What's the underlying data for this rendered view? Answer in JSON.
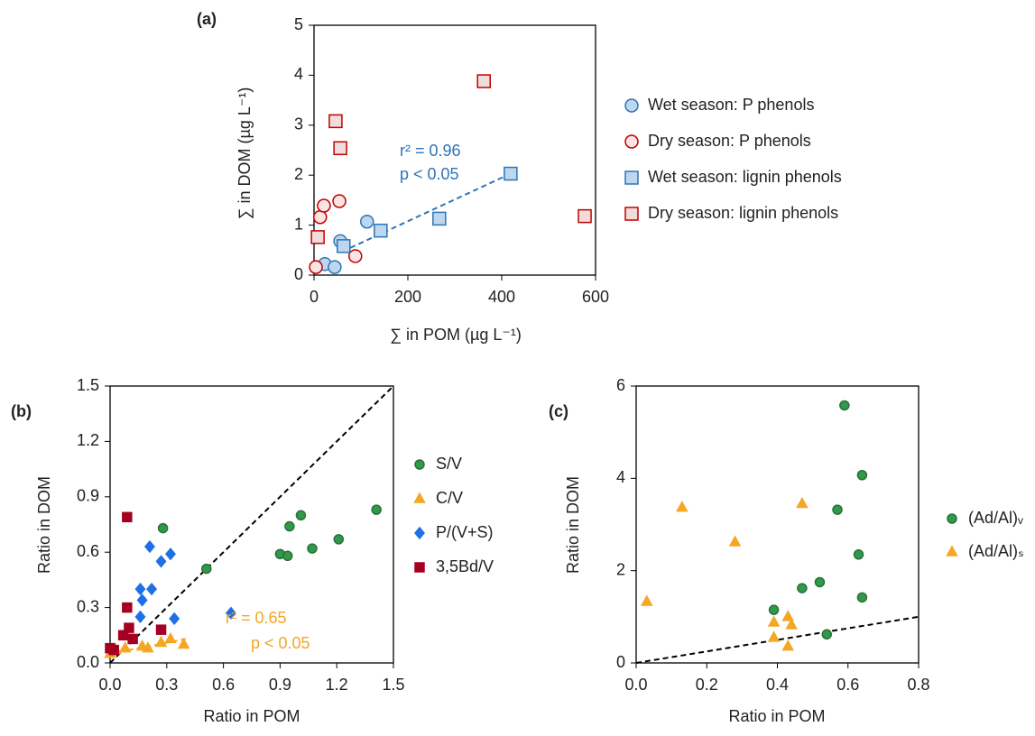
{
  "chart_data": [
    {
      "type": "scatter",
      "panel_label": "(a)",
      "x_label": "∑ in POM (µg L⁻¹)",
      "y_label": "∑ in DOM (µg L⁻¹)",
      "xlim": [
        0,
        600
      ],
      "ylim": [
        0,
        5
      ],
      "xticks": [
        0,
        200,
        400,
        600
      ],
      "yticks": [
        0,
        1,
        2,
        3,
        4,
        5
      ],
      "series": [
        {
          "name": "Wet season: P phenols",
          "marker": "circle",
          "color": "#2e75b6",
          "fill": "#bdd7ee",
          "x": [
            23,
            44,
            56,
            113
          ],
          "values": [
            0.22,
            0.16,
            0.68,
            1.07
          ]
        },
        {
          "name": "Dry season: P phenols",
          "marker": "circle",
          "color": "#c00000",
          "fill": "#fbe5e4",
          "x": [
            4,
            13,
            21,
            54,
            88
          ],
          "values": [
            0.16,
            1.16,
            1.39,
            1.48,
            0.38
          ]
        },
        {
          "name": "Wet season: lignin phenols",
          "marker": "square",
          "color": "#2e75b6",
          "fill": "#bdd7ee",
          "x": [
            63,
            142,
            267,
            419
          ],
          "values": [
            0.58,
            0.89,
            1.13,
            2.03
          ]
        },
        {
          "name": "Dry season: lignin phenols",
          "marker": "square",
          "color": "#c00000",
          "fill": "#f2dcdb",
          "x": [
            8,
            46,
            56,
            362,
            577
          ],
          "values": [
            0.76,
            3.08,
            2.54,
            3.88,
            1.18
          ]
        }
      ],
      "lines": [
        {
          "x": [
            60,
            419
          ],
          "values": [
            0.47,
            2.03
          ],
          "color": "#2e75b6"
        }
      ],
      "annotations": [
        {
          "text": "r² = 0.96",
          "color": "#2e75b6"
        },
        {
          "text": "p < 0.05",
          "color": "#2e75b6"
        }
      ]
    },
    {
      "type": "scatter",
      "panel_label": "(b)",
      "x_label": "Ratio in POM",
      "y_label": "Ratio in DOM",
      "xlim": [
        0,
        1.5
      ],
      "ylim": [
        0,
        1.5
      ],
      "xticks": [
        {
          "value": 0,
          "label": "0.0"
        },
        0.3,
        0.6,
        0.9,
        1.2,
        1.5
      ],
      "yticks": [
        {
          "value": 0,
          "label": "0.0"
        },
        0.3,
        0.6,
        0.9,
        1.2,
        1.5
      ],
      "series": [
        {
          "name": "S/V",
          "marker": "circle",
          "color": "#2f6e3a",
          "fill": "#2e9a4a",
          "x": [
            0.28,
            0.51,
            0.9,
            0.94,
            0.95,
            1.01,
            1.07,
            1.21,
            1.41
          ],
          "values": [
            0.73,
            0.51,
            0.59,
            0.58,
            0.74,
            0.8,
            0.62,
            0.67,
            0.83
          ]
        },
        {
          "name": "C/V",
          "marker": "triangle",
          "color": "#f5a623",
          "fill": "#f5a623",
          "x": [
            0.0,
            0.03,
            0.08,
            0.17,
            0.2,
            0.27,
            0.32,
            0.39
          ],
          "values": [
            0.05,
            0.07,
            0.08,
            0.09,
            0.08,
            0.11,
            0.13,
            0.1
          ]
        },
        {
          "name": "P/(V+S)",
          "marker": "diamond",
          "color": "#1f6fe5",
          "fill": "#1f6fe5",
          "x": [
            0.16,
            0.16,
            0.17,
            0.21,
            0.22,
            0.27,
            0.32,
            0.34,
            0.64
          ],
          "values": [
            0.4,
            0.25,
            0.34,
            0.63,
            0.4,
            0.55,
            0.59,
            0.24,
            0.27
          ]
        },
        {
          "name": "3,5Bd/V",
          "marker": "square",
          "color": "#a50021",
          "fill": "#a50021",
          "x": [
            0.0,
            0.02,
            0.07,
            0.09,
            0.09,
            0.1,
            0.12,
            0.27
          ],
          "values": [
            0.08,
            0.07,
            0.15,
            0.79,
            0.3,
            0.19,
            0.13,
            0.18
          ]
        }
      ],
      "lines": [
        {
          "x": [
            0,
            1.5
          ],
          "values": [
            0,
            1.5
          ],
          "color": "#000000"
        },
        {
          "x": [
            0,
            0.4
          ],
          "values": [
            0.05,
            0.13
          ],
          "color": "#f5a623"
        }
      ],
      "annotations": [
        {
          "text": "r² = 0.65",
          "color": "#f5a623"
        },
        {
          "text": "p < 0.05",
          "color": "#f5a623"
        }
      ]
    },
    {
      "type": "scatter",
      "panel_label": "(c)",
      "x_label": "Ratio in POM",
      "y_label": "Ratio in DOM",
      "xlim": [
        0,
        0.8
      ],
      "ylim": [
        0,
        6
      ],
      "xticks": [
        {
          "value": 0,
          "label": "0.0"
        },
        0.2,
        0.4,
        0.6,
        0.8
      ],
      "yticks": [
        0,
        2,
        4,
        6
      ],
      "series": [
        {
          "name": "(Ad/Al)ᵥ",
          "marker": "circle",
          "color": "#2f6e3a",
          "fill": "#2e9a4a",
          "x": [
            0.39,
            0.47,
            0.52,
            0.54,
            0.57,
            0.59,
            0.63,
            0.64,
            0.64
          ],
          "values": [
            1.15,
            1.62,
            1.75,
            0.62,
            3.32,
            5.58,
            2.35,
            4.07,
            1.42
          ]
        },
        {
          "name": "(Ad/Al)ₛ",
          "marker": "triangle",
          "color": "#f5a623",
          "fill": "#f5a623",
          "x": [
            0.03,
            0.13,
            0.28,
            0.39,
            0.39,
            0.43,
            0.43,
            0.44,
            0.47
          ],
          "values": [
            1.33,
            3.37,
            2.62,
            0.88,
            0.55,
            1.0,
            0.36,
            0.82,
            3.45
          ]
        }
      ],
      "lines": [
        {
          "x": [
            0,
            0.8
          ],
          "values": [
            0,
            1.0
          ],
          "color": "#000000"
        }
      ],
      "annotations": []
    }
  ]
}
